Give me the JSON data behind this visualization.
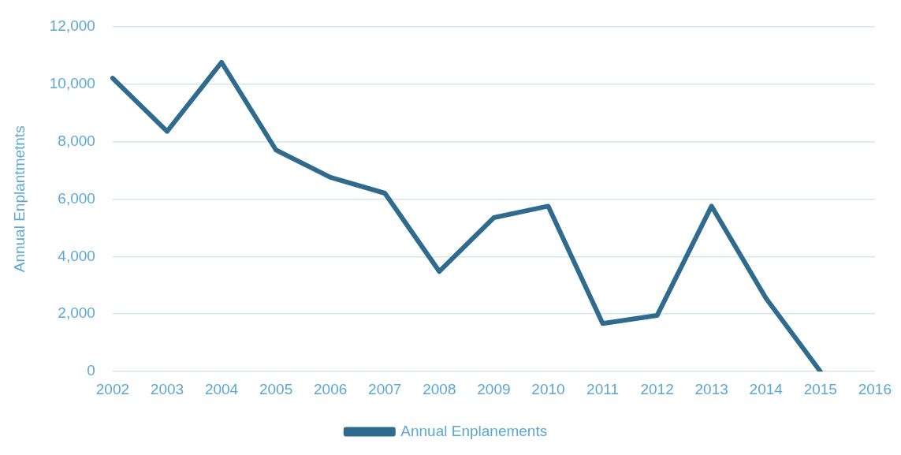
{
  "chart_data": {
    "type": "line",
    "ylabel": "Annual Enplantmetnts",
    "categories": [
      "2002",
      "2003",
      "2004",
      "2005",
      "2006",
      "2007",
      "2008",
      "2009",
      "2010",
      "2011",
      "2012",
      "2013",
      "2014",
      "2015",
      "2016"
    ],
    "series": [
      {
        "name": "Annual Enplanements",
        "color": "#2e6b8c",
        "values": [
          10200,
          8350,
          10750,
          7700,
          6750,
          6200,
          3480,
          5350,
          5750,
          1670,
          1950,
          5750,
          2550,
          0,
          null
        ]
      }
    ],
    "ylim": [
      0,
      12000
    ],
    "yticks": [
      {
        "value": 0,
        "label": "0"
      },
      {
        "value": 2000,
        "label": "2,000"
      },
      {
        "value": 4000,
        "label": "4,000"
      },
      {
        "value": 6000,
        "label": "6,000"
      },
      {
        "value": 8000,
        "label": "8,000"
      },
      {
        "value": 10000,
        "label": "10,000"
      },
      {
        "value": 12000,
        "label": "12,000"
      }
    ],
    "grid": "y",
    "legend": "bottom",
    "marker": "none",
    "line_style": "solid"
  }
}
